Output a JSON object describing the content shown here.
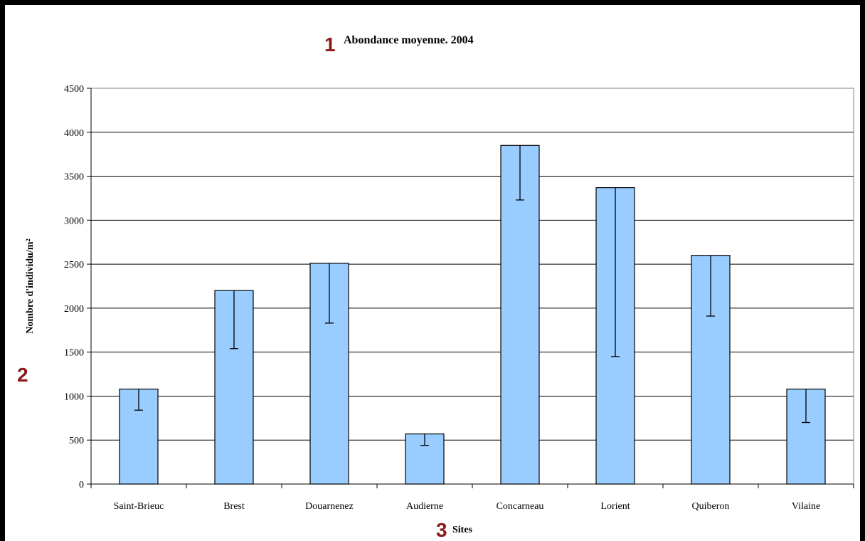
{
  "chart_data": {
    "type": "bar",
    "title": "Abondance moyenne. 2004",
    "xlabel": "Sites",
    "ylabel": "Nombre d'individu/m²",
    "categories": [
      "Saint-Brieuc",
      "Brest",
      "Douarnenez",
      "Audierne",
      "Concarneau",
      "Lorient",
      "Quiberon",
      "Vilaine"
    ],
    "values": [
      1080,
      2200,
      2510,
      570,
      3850,
      3370,
      2600,
      1080
    ],
    "error_lower": [
      840,
      1540,
      1830,
      440,
      3230,
      1450,
      1910,
      700
    ],
    "ylim": [
      0,
      4500
    ],
    "yticks": [
      0,
      500,
      1000,
      1500,
      2000,
      2500,
      3000,
      3500,
      4000,
      4500
    ],
    "grid": true,
    "legend": "none"
  },
  "markers": [
    "1",
    "2",
    "3"
  ],
  "colors": {
    "bar_fill": "#99ccff",
    "bar_stroke": "#000000",
    "grid": "#000000",
    "marker": "#8b1a1a"
  }
}
